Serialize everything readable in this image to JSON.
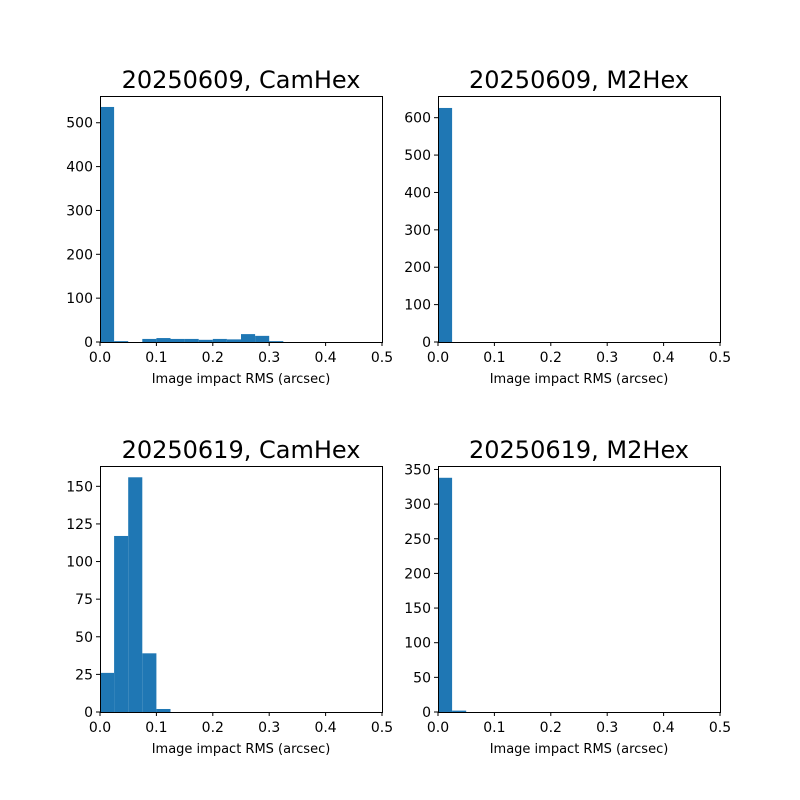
{
  "colors": {
    "bar": "#1f77b4",
    "axis": "#000000"
  },
  "chart_data": [
    {
      "type": "bar",
      "title": "20250609, CamHex",
      "xlabel": "Image impact RMS (arcsec)",
      "ylabel": "",
      "xlim": [
        0,
        0.5
      ],
      "ylim": [
        0,
        561
      ],
      "xticks": [
        0,
        0.1,
        0.2,
        0.3,
        0.4,
        0.5
      ],
      "xtick_labels": [
        "0.0",
        "0.1",
        "0.2",
        "0.3",
        "0.4",
        "0.5"
      ],
      "yticks": [
        0,
        100,
        200,
        300,
        400,
        500
      ],
      "ytick_labels": [
        "0",
        "100",
        "200",
        "300",
        "400",
        "500"
      ],
      "bin_width": 0.025,
      "bins": [
        {
          "x0": 0.0,
          "x1": 0.025,
          "count": 536
        },
        {
          "x0": 0.025,
          "x1": 0.05,
          "count": 2
        },
        {
          "x0": 0.075,
          "x1": 0.1,
          "count": 7
        },
        {
          "x0": 0.1,
          "x1": 0.125,
          "count": 9
        },
        {
          "x0": 0.125,
          "x1": 0.15,
          "count": 7
        },
        {
          "x0": 0.15,
          "x1": 0.175,
          "count": 7
        },
        {
          "x0": 0.175,
          "x1": 0.2,
          "count": 5
        },
        {
          "x0": 0.2,
          "x1": 0.225,
          "count": 7
        },
        {
          "x0": 0.225,
          "x1": 0.25,
          "count": 6
        },
        {
          "x0": 0.25,
          "x1": 0.275,
          "count": 18
        },
        {
          "x0": 0.275,
          "x1": 0.3,
          "count": 14
        },
        {
          "x0": 0.3,
          "x1": 0.325,
          "count": 2
        }
      ]
    },
    {
      "type": "bar",
      "title": "20250609, M2Hex",
      "xlabel": "Image impact RMS (arcsec)",
      "ylabel": "",
      "xlim": [
        0,
        0.5
      ],
      "ylim": [
        0,
        658
      ],
      "xticks": [
        0,
        0.1,
        0.2,
        0.3,
        0.4,
        0.5
      ],
      "xtick_labels": [
        "0.0",
        "0.1",
        "0.2",
        "0.3",
        "0.4",
        "0.5"
      ],
      "yticks": [
        0,
        100,
        200,
        300,
        400,
        500,
        600
      ],
      "ytick_labels": [
        "0",
        "100",
        "200",
        "300",
        "400",
        "500",
        "600"
      ],
      "bin_width": 0.025,
      "bins": [
        {
          "x0": 0.0,
          "x1": 0.025,
          "count": 626
        }
      ]
    },
    {
      "type": "bar",
      "title": "20250619, CamHex",
      "xlabel": "Image impact RMS (arcsec)",
      "ylabel": "",
      "xlim": [
        0,
        0.5
      ],
      "ylim": [
        0,
        163.5
      ],
      "xticks": [
        0,
        0.1,
        0.2,
        0.3,
        0.4,
        0.5
      ],
      "xtick_labels": [
        "0.0",
        "0.1",
        "0.2",
        "0.3",
        "0.4",
        "0.5"
      ],
      "yticks": [
        0,
        25,
        50,
        75,
        100,
        125,
        150
      ],
      "ytick_labels": [
        "0",
        "25",
        "50",
        "75",
        "100",
        "125",
        "150"
      ],
      "bin_width": 0.025,
      "bins": [
        {
          "x0": 0.0,
          "x1": 0.025,
          "count": 26
        },
        {
          "x0": 0.025,
          "x1": 0.05,
          "count": 117
        },
        {
          "x0": 0.05,
          "x1": 0.075,
          "count": 156
        },
        {
          "x0": 0.075,
          "x1": 0.1,
          "count": 39
        },
        {
          "x0": 0.1,
          "x1": 0.125,
          "count": 2
        }
      ]
    },
    {
      "type": "bar",
      "title": "20250619, M2Hex",
      "xlabel": "Image impact RMS (arcsec)",
      "ylabel": "",
      "xlim": [
        0,
        0.5
      ],
      "ylim": [
        0,
        355
      ],
      "xticks": [
        0,
        0.1,
        0.2,
        0.3,
        0.4,
        0.5
      ],
      "xtick_labels": [
        "0.0",
        "0.1",
        "0.2",
        "0.3",
        "0.4",
        "0.5"
      ],
      "yticks": [
        0,
        50,
        100,
        150,
        200,
        250,
        300,
        350
      ],
      "ytick_labels": [
        "0",
        "50",
        "100",
        "150",
        "200",
        "250",
        "300",
        "350"
      ],
      "bin_width": 0.025,
      "bins": [
        {
          "x0": 0.0,
          "x1": 0.025,
          "count": 338
        },
        {
          "x0": 0.025,
          "x1": 0.05,
          "count": 2
        }
      ]
    }
  ]
}
